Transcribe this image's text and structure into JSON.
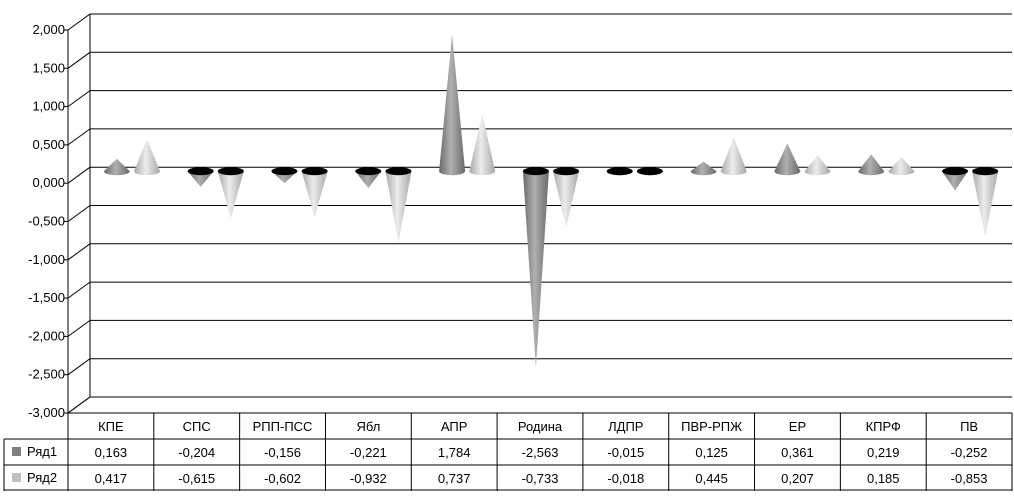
{
  "chart_data": {
    "type": "bar",
    "style": "3d-cone",
    "categories": [
      "КПЕ",
      "СПС",
      "РПП-ПСС",
      "Ябл",
      "АПР",
      "Родина",
      "ЛДПР",
      "ПВР-РПЖ",
      "ЕР",
      "КПРФ",
      "ПВ"
    ],
    "series": [
      {
        "name": "Ряд1",
        "values": [
          0.163,
          -0.204,
          -0.156,
          -0.221,
          1.784,
          -2.563,
          -0.015,
          0.125,
          0.361,
          0.219,
          -0.252
        ],
        "labels": [
          "0,163",
          "-0,204",
          "-0,156",
          "-0,221",
          "1,784",
          "-2,563",
          "-0,015",
          "0,125",
          "0,361",
          "0,219",
          "-0,252"
        ],
        "color": "#808080"
      },
      {
        "name": "Ряд2",
        "values": [
          0.417,
          -0.615,
          -0.602,
          -0.932,
          0.737,
          -0.733,
          -0.018,
          0.445,
          0.207,
          0.185,
          -0.853
        ],
        "labels": [
          "0,417",
          "-0,615",
          "-0,602",
          "-0,932",
          "0,737",
          "-0,733",
          "-0,018",
          "0,445",
          "0,207",
          "0,185",
          "-0,853"
        ],
        "color": "#c0c0c0"
      }
    ],
    "y_ticks": [
      2.0,
      1.5,
      1.0,
      0.5,
      0.0,
      -0.5,
      -1.0,
      -1.5,
      -2.0,
      -2.5,
      -3.0
    ],
    "y_tick_labels": [
      "2,000",
      "1,500",
      "1,000",
      "0,500",
      "0,000",
      "-0,500",
      "-1,000",
      "-1,500",
      "-2,000",
      "-2,500",
      "-3,000"
    ],
    "ylim": [
      -3.0,
      2.0
    ],
    "grid": true,
    "legend": "data-table"
  }
}
